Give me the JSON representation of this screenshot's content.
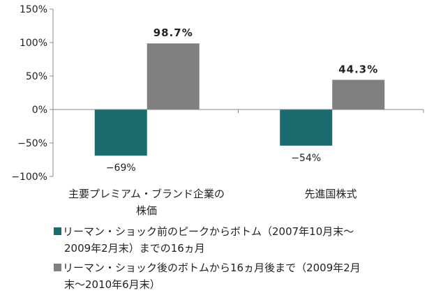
{
  "chart_data": {
    "type": "bar",
    "categories": [
      "主要プレミアム・ブランド企業の株価",
      "先進国株式"
    ],
    "category_lines": [
      [
        "主要プレミアム・ブランド企業の",
        "株価"
      ],
      [
        "先進国株式"
      ]
    ],
    "series": [
      {
        "name": "リーマン・ショック前のピークからボトム（2007年10月末〜2009年2月末）までの16ヵ月",
        "legend_lines": [
          "リーマン・ショック前のピークからボトム（2007年10月末〜",
          "2009年2月末）までの16ヵ月"
        ],
        "values": [
          -69,
          -54
        ],
        "labels": [
          "−69%",
          "−54%"
        ],
        "color": "#1b6b6f"
      },
      {
        "name": "リーマン・ショック後のボトムから16ヵ月後まで（2009年2月末〜2010年6月末）",
        "legend_lines": [
          "リーマン・ショック後のボトムから16ヵ月後まで（2009年2月",
          "末〜2010年6月末）"
        ],
        "values": [
          98.7,
          44.3
        ],
        "labels": [
          "98.7%",
          "44.3%"
        ],
        "color": "#808080"
      }
    ],
    "ylim": [
      -100,
      150
    ],
    "yticks": [
      -100,
      -50,
      0,
      50,
      100,
      150
    ],
    "ytick_labels": [
      "−100%",
      "−50%",
      "0%",
      "50%",
      "100%",
      "150%"
    ],
    "grid": false,
    "legend_placement": "bottom"
  }
}
